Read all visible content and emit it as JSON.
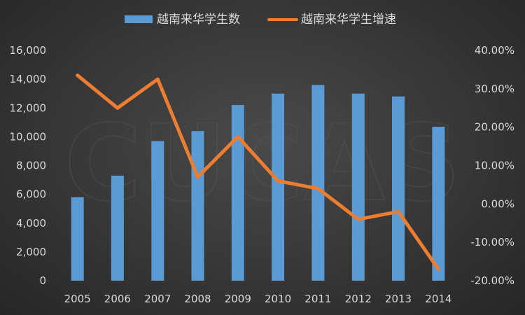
{
  "chart_data": {
    "type": "bar+line",
    "categories": [
      "2005",
      "2006",
      "2007",
      "2008",
      "2009",
      "2010",
      "2011",
      "2012",
      "2013",
      "2014"
    ],
    "series": [
      {
        "name": "越南来华学生数",
        "type": "bar",
        "axis": "left",
        "values": [
          5800,
          7300,
          9700,
          10400,
          12200,
          13000,
          13600,
          13000,
          12800,
          10700
        ]
      },
      {
        "name": "越南来华学生增速",
        "type": "line",
        "axis": "right",
        "values": [
          33.5,
          25.0,
          32.5,
          7.0,
          17.5,
          6.0,
          4.0,
          -4.0,
          -2.0,
          -17.0
        ]
      }
    ],
    "y_left": {
      "ticks": [
        "0",
        "2,000",
        "4,000",
        "6,000",
        "8,000",
        "10,000",
        "12,000",
        "14,000",
        "16,000"
      ],
      "ylim": [
        0,
        16000
      ]
    },
    "y_right": {
      "ticks": [
        "-20.00%",
        "-10.00%",
        "0.00%",
        "10.00%",
        "20.00%",
        "30.00%",
        "40.00%"
      ],
      "ylim": [
        -20,
        40
      ]
    },
    "legend_position": "top-center",
    "grid": false,
    "colors": {
      "bar": "#5b9bd5",
      "line": "#ed7d31",
      "text": "#d9d9d9"
    }
  },
  "watermark": "CUCAS"
}
